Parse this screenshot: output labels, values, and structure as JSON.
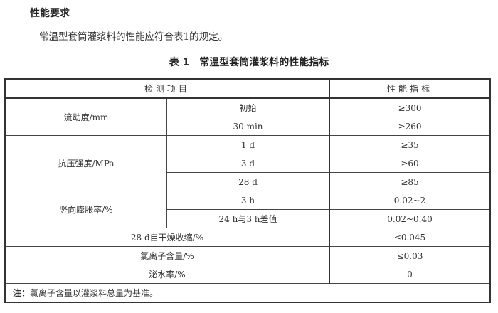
{
  "heading": "性能要求",
  "paragraph": "常温型套筒灌浆料的性能应符合表1的规定。",
  "caption": "表 1　常温型套筒灌浆料的性能指标",
  "table": {
    "headers": [
      "检测项目",
      "性能指标"
    ],
    "groups": [
      {
        "item": "流动度/mm",
        "rows": [
          {
            "sub": "初始",
            "value": "≥300"
          },
          {
            "sub": "30 min",
            "value": "≥260"
          }
        ]
      },
      {
        "item": "抗压强度/MPa",
        "rows": [
          {
            "sub": "1 d",
            "value": "≥35"
          },
          {
            "sub": "3 d",
            "value": "≥60"
          },
          {
            "sub": "28 d",
            "value": "≥85"
          }
        ]
      },
      {
        "item": "竖向膨胀率/%",
        "rows": [
          {
            "sub": "3 h",
            "value": "0.02~2"
          },
          {
            "sub": "24 h与3 h差值",
            "value": "0.02~0.40"
          }
        ]
      }
    ],
    "singles": [
      {
        "item": "28 d自干燥收缩/%",
        "value": "≤0.045"
      },
      {
        "item": "氯离子含量/%",
        "value": "≤0.03"
      },
      {
        "item": "泌水率/%",
        "value": "0"
      }
    ],
    "note_label": "注：",
    "note": "氯离子含量以灌浆料总量为基准。"
  }
}
